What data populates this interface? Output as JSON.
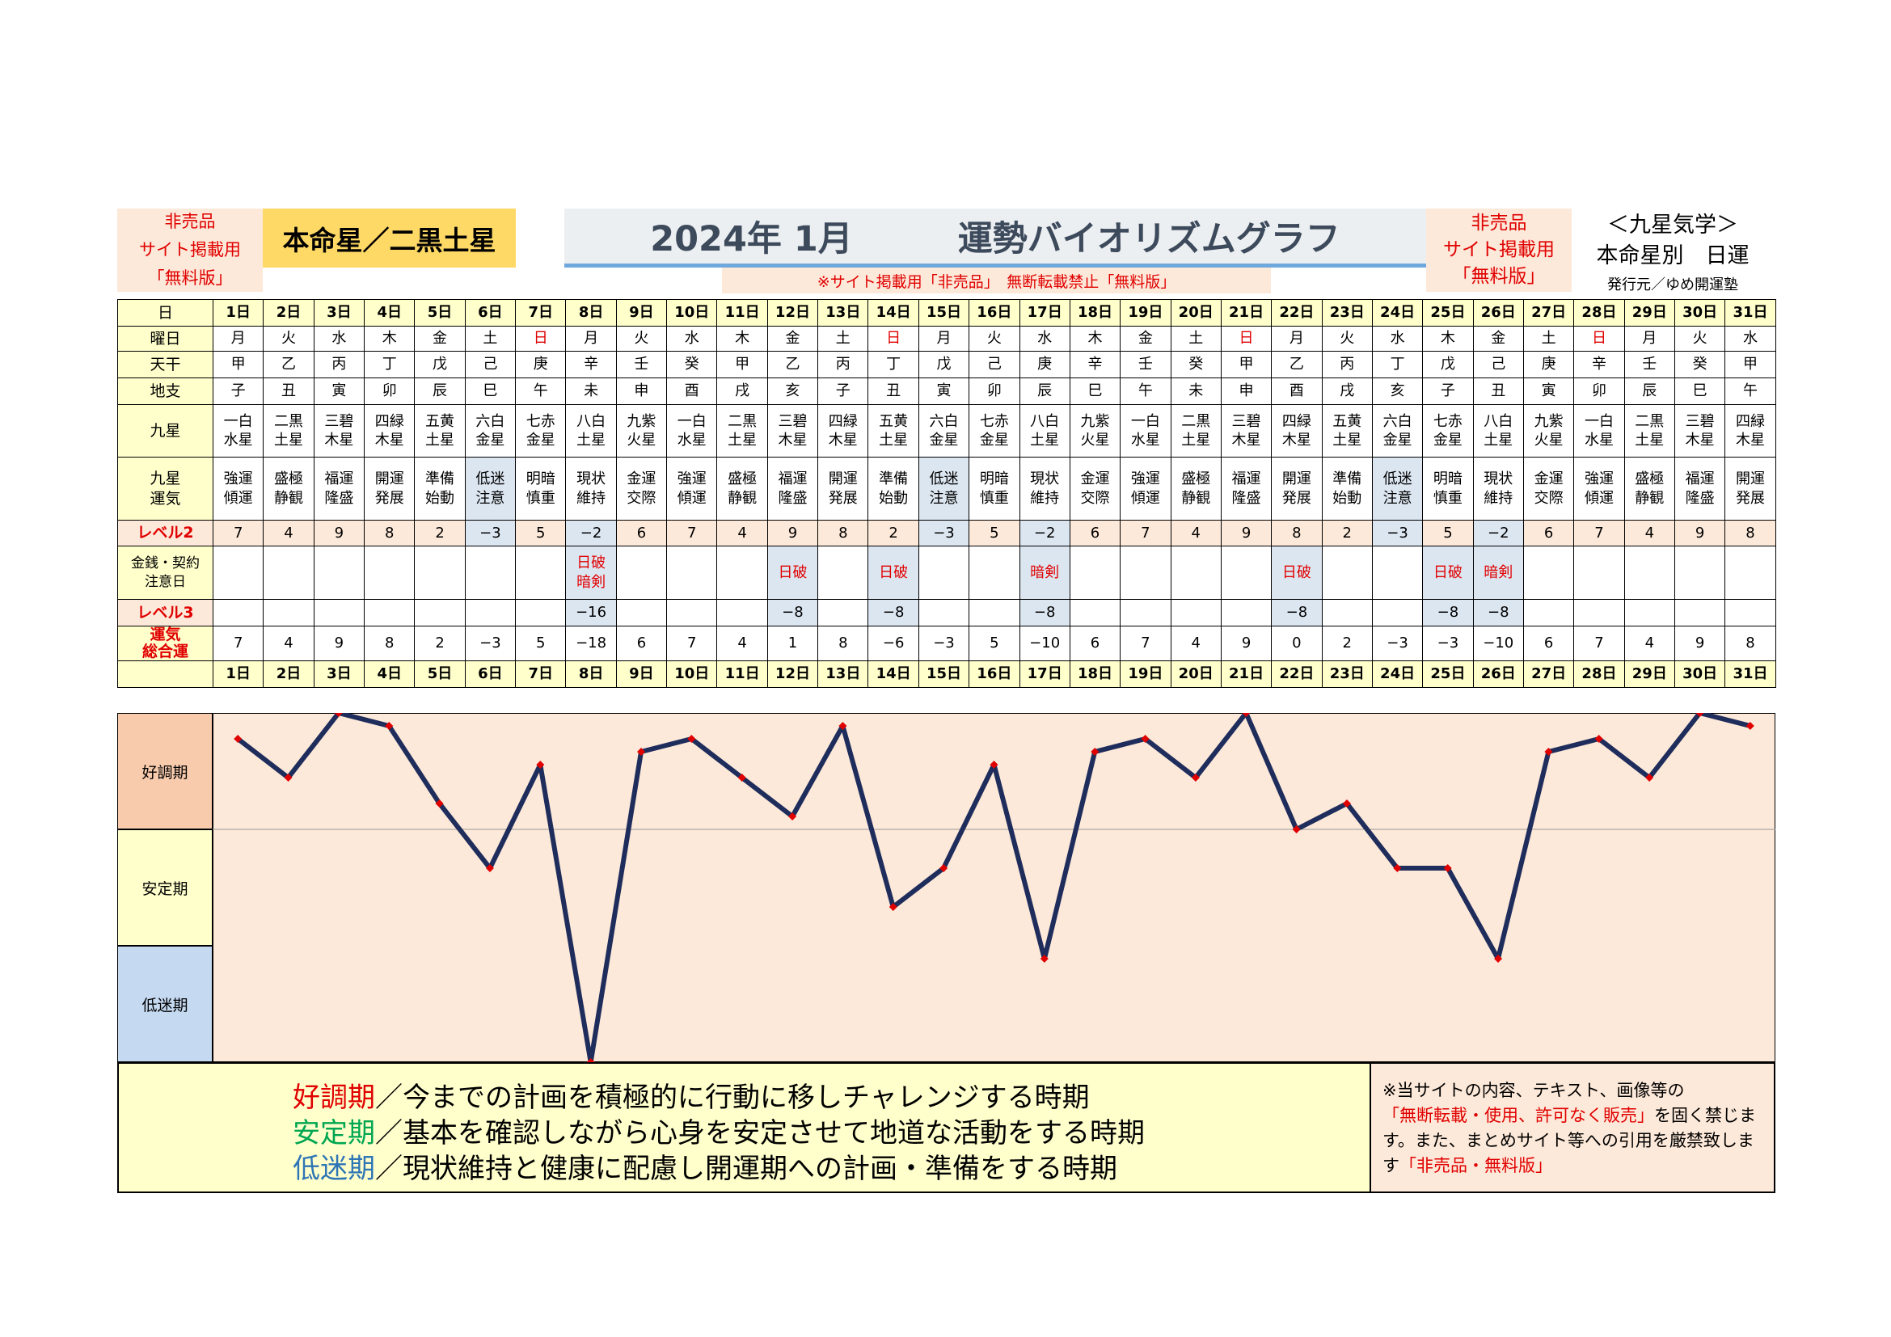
{
  "header": {
    "left_notice": [
      "非売品",
      "サイト掲載用",
      "「無料版」"
    ],
    "honmei": "本命星／二黒土星",
    "title_date": "2024年 1月",
    "title_main": "運勢バイオリズムグラフ",
    "sub_notice": "※サイト掲載用「非売品」　無断転載禁止「無料版」",
    "right_notice": [
      "非売品",
      "サイト掲載用",
      "「無料版」"
    ],
    "kyusei": [
      "＜九星気学＞",
      "本命星別　日運"
    ],
    "issuer": "発行元／ゆめ開運塾"
  },
  "colors": {
    "accent_red": "#e00000",
    "label_yellow": "#ffffcc",
    "pink": "#fde9d9",
    "blue": "#dce6f1",
    "line_navy": "#1f2d5c",
    "marker": "#e00000"
  },
  "row_labels": {
    "day": "日",
    "weekday": "曜日",
    "tenkan": "天干",
    "chishi": "地支",
    "kyusei": [
      "九星"
    ],
    "unki": [
      "九星",
      "運気"
    ],
    "level2": "レベル2",
    "caution": [
      "金銭・契約",
      "注意日"
    ],
    "level3": "レベル3",
    "total": [
      "運気",
      "総合運"
    ]
  },
  "zones": {
    "good": "好調期",
    "stable": "安定期",
    "low": "低迷期"
  },
  "days": [
    {
      "d": "1日",
      "w": "月",
      "t": "甲",
      "c": "子",
      "k": [
        "一白",
        "水星"
      ],
      "u": [
        "強運",
        "傾運"
      ],
      "l2": "7",
      "caution": [],
      "l3": "",
      "total": "7"
    },
    {
      "d": "2日",
      "w": "火",
      "t": "乙",
      "c": "丑",
      "k": [
        "二黒",
        "土星"
      ],
      "u": [
        "盛極",
        "静観"
      ],
      "l2": "4",
      "caution": [],
      "l3": "",
      "total": "4"
    },
    {
      "d": "3日",
      "w": "水",
      "t": "丙",
      "c": "寅",
      "k": [
        "三碧",
        "木星"
      ],
      "u": [
        "福運",
        "隆盛"
      ],
      "l2": "9",
      "caution": [],
      "l3": "",
      "total": "9"
    },
    {
      "d": "4日",
      "w": "木",
      "t": "丁",
      "c": "卯",
      "k": [
        "四緑",
        "木星"
      ],
      "u": [
        "開運",
        "発展"
      ],
      "l2": "8",
      "caution": [],
      "l3": "",
      "total": "8"
    },
    {
      "d": "5日",
      "w": "金",
      "t": "戊",
      "c": "辰",
      "k": [
        "五黄",
        "土星"
      ],
      "u": [
        "準備",
        "始動"
      ],
      "l2": "2",
      "caution": [],
      "l3": "",
      "total": "2"
    },
    {
      "d": "6日",
      "w": "土",
      "t": "己",
      "c": "巳",
      "k": [
        "六白",
        "金星"
      ],
      "u": [
        "低迷",
        "注意"
      ],
      "l2": "−3",
      "caution": [],
      "l3": "",
      "total": "−3"
    },
    {
      "d": "7日",
      "w": "日",
      "t": "庚",
      "c": "午",
      "k": [
        "七赤",
        "金星"
      ],
      "u": [
        "明暗",
        "慎重"
      ],
      "l2": "5",
      "caution": [],
      "l3": "",
      "total": "5"
    },
    {
      "d": "8日",
      "w": "月",
      "t": "辛",
      "c": "未",
      "k": [
        "八白",
        "土星"
      ],
      "u": [
        "現状",
        "維持"
      ],
      "l2": "−2",
      "caution": [
        "日破",
        "暗剣"
      ],
      "l3": "−16",
      "total": "−18"
    },
    {
      "d": "9日",
      "w": "火",
      "t": "壬",
      "c": "申",
      "k": [
        "九紫",
        "火星"
      ],
      "u": [
        "金運",
        "交際"
      ],
      "l2": "6",
      "caution": [],
      "l3": "",
      "total": "6"
    },
    {
      "d": "10日",
      "w": "水",
      "t": "癸",
      "c": "酉",
      "k": [
        "一白",
        "水星"
      ],
      "u": [
        "強運",
        "傾運"
      ],
      "l2": "7",
      "caution": [],
      "l3": "",
      "total": "7"
    },
    {
      "d": "11日",
      "w": "木",
      "t": "甲",
      "c": "戌",
      "k": [
        "二黒",
        "土星"
      ],
      "u": [
        "盛極",
        "静観"
      ],
      "l2": "4",
      "caution": [],
      "l3": "",
      "total": "4"
    },
    {
      "d": "12日",
      "w": "金",
      "t": "乙",
      "c": "亥",
      "k": [
        "三碧",
        "木星"
      ],
      "u": [
        "福運",
        "隆盛"
      ],
      "l2": "9",
      "caution": [
        "日破"
      ],
      "l3": "−8",
      "total": "1"
    },
    {
      "d": "13日",
      "w": "土",
      "t": "丙",
      "c": "子",
      "k": [
        "四緑",
        "木星"
      ],
      "u": [
        "開運",
        "発展"
      ],
      "l2": "8",
      "caution": [],
      "l3": "",
      "total": "8"
    },
    {
      "d": "14日",
      "w": "日",
      "t": "丁",
      "c": "丑",
      "k": [
        "五黄",
        "土星"
      ],
      "u": [
        "準備",
        "始動"
      ],
      "l2": "2",
      "caution": [
        "日破"
      ],
      "l3": "−8",
      "total": "−6"
    },
    {
      "d": "15日",
      "w": "月",
      "t": "戊",
      "c": "寅",
      "k": [
        "六白",
        "金星"
      ],
      "u": [
        "低迷",
        "注意"
      ],
      "l2": "−3",
      "caution": [],
      "l3": "",
      "total": "−3"
    },
    {
      "d": "16日",
      "w": "火",
      "t": "己",
      "c": "卯",
      "k": [
        "七赤",
        "金星"
      ],
      "u": [
        "明暗",
        "慎重"
      ],
      "l2": "5",
      "caution": [],
      "l3": "",
      "total": "5"
    },
    {
      "d": "17日",
      "w": "水",
      "t": "庚",
      "c": "辰",
      "k": [
        "八白",
        "土星"
      ],
      "u": [
        "現状",
        "維持"
      ],
      "l2": "−2",
      "caution": [
        "暗剣"
      ],
      "l3": "−8",
      "total": "−10"
    },
    {
      "d": "18日",
      "w": "木",
      "t": "辛",
      "c": "巳",
      "k": [
        "九紫",
        "火星"
      ],
      "u": [
        "金運",
        "交際"
      ],
      "l2": "6",
      "caution": [],
      "l3": "",
      "total": "6"
    },
    {
      "d": "19日",
      "w": "金",
      "t": "壬",
      "c": "午",
      "k": [
        "一白",
        "水星"
      ],
      "u": [
        "強運",
        "傾運"
      ],
      "l2": "7",
      "caution": [],
      "l3": "",
      "total": "7"
    },
    {
      "d": "20日",
      "w": "土",
      "t": "癸",
      "c": "未",
      "k": [
        "二黒",
        "土星"
      ],
      "u": [
        "盛極",
        "静観"
      ],
      "l2": "4",
      "caution": [],
      "l3": "",
      "total": "4"
    },
    {
      "d": "21日",
      "w": "日",
      "t": "甲",
      "c": "申",
      "k": [
        "三碧",
        "木星"
      ],
      "u": [
        "福運",
        "隆盛"
      ],
      "l2": "9",
      "caution": [],
      "l3": "",
      "total": "9"
    },
    {
      "d": "22日",
      "w": "月",
      "t": "乙",
      "c": "酉",
      "k": [
        "四緑",
        "木星"
      ],
      "u": [
        "開運",
        "発展"
      ],
      "l2": "8",
      "caution": [
        "日破"
      ],
      "l3": "−8",
      "total": "0"
    },
    {
      "d": "23日",
      "w": "火",
      "t": "丙",
      "c": "戌",
      "k": [
        "五黄",
        "土星"
      ],
      "u": [
        "準備",
        "始動"
      ],
      "l2": "2",
      "caution": [],
      "l3": "",
      "total": "2"
    },
    {
      "d": "24日",
      "w": "水",
      "t": "丁",
      "c": "亥",
      "k": [
        "六白",
        "金星"
      ],
      "u": [
        "低迷",
        "注意"
      ],
      "l2": "−3",
      "caution": [],
      "l3": "",
      "total": "−3"
    },
    {
      "d": "25日",
      "w": "木",
      "t": "戊",
      "c": "子",
      "k": [
        "七赤",
        "金星"
      ],
      "u": [
        "明暗",
        "慎重"
      ],
      "l2": "5",
      "caution": [
        "日破"
      ],
      "l3": "−8",
      "total": "−3"
    },
    {
      "d": "26日",
      "w": "金",
      "t": "己",
      "c": "丑",
      "k": [
        "八白",
        "土星"
      ],
      "u": [
        "現状",
        "維持"
      ],
      "l2": "−2",
      "caution": [
        "暗剣"
      ],
      "l3": "−8",
      "total": "−10"
    },
    {
      "d": "27日",
      "w": "土",
      "t": "庚",
      "c": "寅",
      "k": [
        "九紫",
        "火星"
      ],
      "u": [
        "金運",
        "交際"
      ],
      "l2": "6",
      "caution": [],
      "l3": "",
      "total": "6"
    },
    {
      "d": "28日",
      "w": "日",
      "t": "辛",
      "c": "卯",
      "k": [
        "一白",
        "水星"
      ],
      "u": [
        "強運",
        "傾運"
      ],
      "l2": "7",
      "caution": [],
      "l3": "",
      "total": "7"
    },
    {
      "d": "29日",
      "w": "月",
      "t": "壬",
      "c": "辰",
      "k": [
        "二黒",
        "土星"
      ],
      "u": [
        "盛極",
        "静観"
      ],
      "l2": "4",
      "caution": [],
      "l3": "",
      "total": "4"
    },
    {
      "d": "30日",
      "w": "火",
      "t": "癸",
      "c": "巳",
      "k": [
        "三碧",
        "木星"
      ],
      "u": [
        "福運",
        "隆盛"
      ],
      "l2": "9",
      "caution": [],
      "l3": "",
      "total": "9"
    },
    {
      "d": "31日",
      "w": "水",
      "t": "甲",
      "c": "午",
      "k": [
        "四緑",
        "木星"
      ],
      "u": [
        "開運",
        "発展"
      ],
      "l2": "8",
      "caution": [],
      "l3": "",
      "total": "8"
    }
  ],
  "chart_data": {
    "type": "line",
    "x": [
      "1日",
      "2日",
      "3日",
      "4日",
      "5日",
      "6日",
      "7日",
      "8日",
      "9日",
      "10日",
      "11日",
      "12日",
      "13日",
      "14日",
      "15日",
      "16日",
      "17日",
      "18日",
      "19日",
      "20日",
      "21日",
      "22日",
      "23日",
      "24日",
      "25日",
      "26日",
      "27日",
      "28日",
      "29日",
      "30日",
      "31日"
    ],
    "series": [
      {
        "values": [
          7,
          4,
          9,
          8,
          2,
          -3,
          5,
          -18,
          6,
          7,
          4,
          1,
          8,
          -6,
          -3,
          5,
          -10,
          6,
          7,
          4,
          9,
          0,
          2,
          -3,
          -3,
          -10,
          6,
          7,
          4,
          9,
          8
        ]
      }
    ],
    "ylim": [
      -18,
      9
    ],
    "bands": [
      "好調期",
      "安定期",
      "低迷期"
    ]
  },
  "footer": {
    "lines": [
      {
        "head": "好調期",
        "color": "#e00000",
        "text": "／今までの計画を積極的に行動に移しチャレンジする時期"
      },
      {
        "head": "安定期",
        "color": "#00a651",
        "text": "／基本を確認しながら心身を安定させて地道な活動をする時期"
      },
      {
        "head": "低迷期",
        "color": "#2e75b6",
        "text": "／現状維持と健康に配慮し開運期への計画・準備をする時期"
      }
    ],
    "note_1": "※当サイトの内容、テキスト、画像等の",
    "note_red_1": "「無断転載・使用、許可なく販売」",
    "note_2": "を固く禁じます。また、まとめサイト等への引用を厳禁致します",
    "note_red_2": "「非売品・無料版」"
  }
}
